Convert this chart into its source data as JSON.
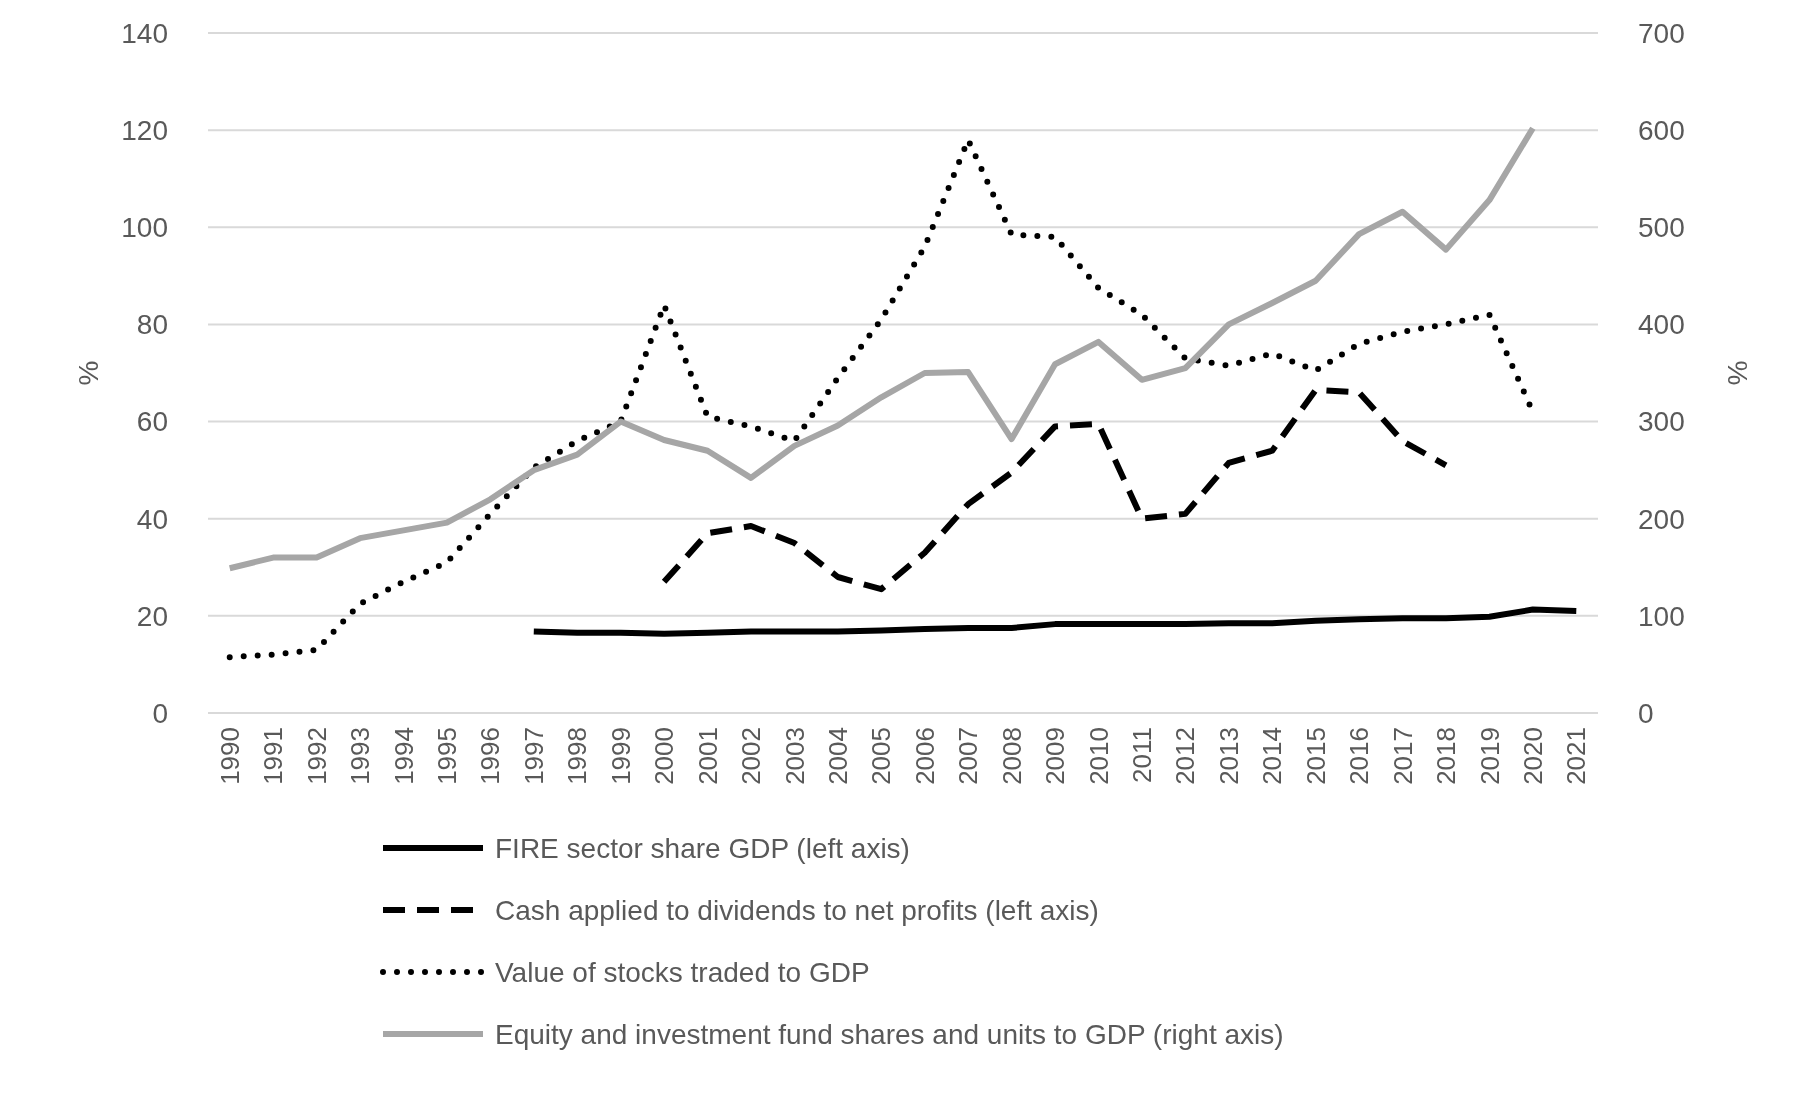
{
  "chart_data": {
    "type": "line",
    "ylabel": "%",
    "y2label": "%",
    "categories": [
      "1990",
      "1991",
      "1992",
      "1993",
      "1994",
      "1995",
      "1996",
      "1997",
      "1998",
      "1999",
      "2000",
      "2001",
      "2002",
      "2003",
      "2004",
      "2005",
      "2006",
      "2007",
      "2008",
      "2009",
      "2010",
      "2011",
      "2012",
      "2013",
      "2014",
      "2015",
      "2016",
      "2017",
      "2018",
      "2019",
      "2020",
      "2021"
    ],
    "ylim": [
      0,
      140
    ],
    "yticks": [
      0,
      20,
      40,
      60,
      80,
      100,
      120,
      140
    ],
    "y2lim": [
      0,
      700
    ],
    "y2ticks": [
      0,
      100,
      200,
      300,
      400,
      500,
      600,
      700
    ],
    "grid": "y",
    "legend": "bottom",
    "series": [
      {
        "name": "FIRE sector share GDP (left axis)",
        "color": "#000000",
        "line_style": "solid",
        "values": [
          null,
          null,
          null,
          null,
          null,
          null,
          null,
          16.8,
          16.5,
          16.5,
          16.3,
          16.5,
          16.8,
          16.8,
          16.8,
          17.0,
          17.3,
          17.5,
          17.5,
          18.3,
          18.3,
          18.3,
          18.3,
          18.5,
          18.5,
          19.0,
          19.3,
          19.5,
          19.5,
          19.8,
          21.3,
          21.0
        ]
      },
      {
        "name": "Cash applied to dividends to net profits (left axis)",
        "color": "#000000",
        "line_style": "dashed",
        "values": [
          null,
          null,
          null,
          null,
          null,
          null,
          null,
          null,
          null,
          null,
          27,
          37,
          38.5,
          35,
          28,
          25.5,
          33,
          43,
          49.5,
          59,
          59.5,
          40,
          41,
          51.5,
          54,
          66.5,
          66,
          56,
          51,
          null,
          null,
          null
        ]
      },
      {
        "name": "Value of stocks traded to GDP",
        "color": "#000000",
        "line_style": "dotted",
        "values": [
          11.5,
          12,
          13,
          22.5,
          27,
          31,
          41,
          50.5,
          56,
          60,
          84,
          61,
          59,
          56,
          69,
          81,
          96,
          118,
          98.5,
          98,
          87.5,
          82,
          73,
          71.5,
          74,
          70.5,
          76,
          78.5,
          80,
          82,
          62,
          null
        ]
      },
      {
        "name": "Equity and investment fund shares and units to GDP (right axis)",
        "color": "#a6a6a6",
        "line_style": "solid",
        "axis": "y2",
        "values": [
          149,
          160,
          160,
          180,
          188,
          196,
          220,
          250,
          266,
          300,
          281,
          270,
          242,
          275,
          296,
          325,
          350,
          351,
          282,
          359,
          382,
          343,
          355,
          400,
          422,
          445,
          493,
          516,
          477,
          528,
          602,
          null
        ]
      }
    ]
  }
}
